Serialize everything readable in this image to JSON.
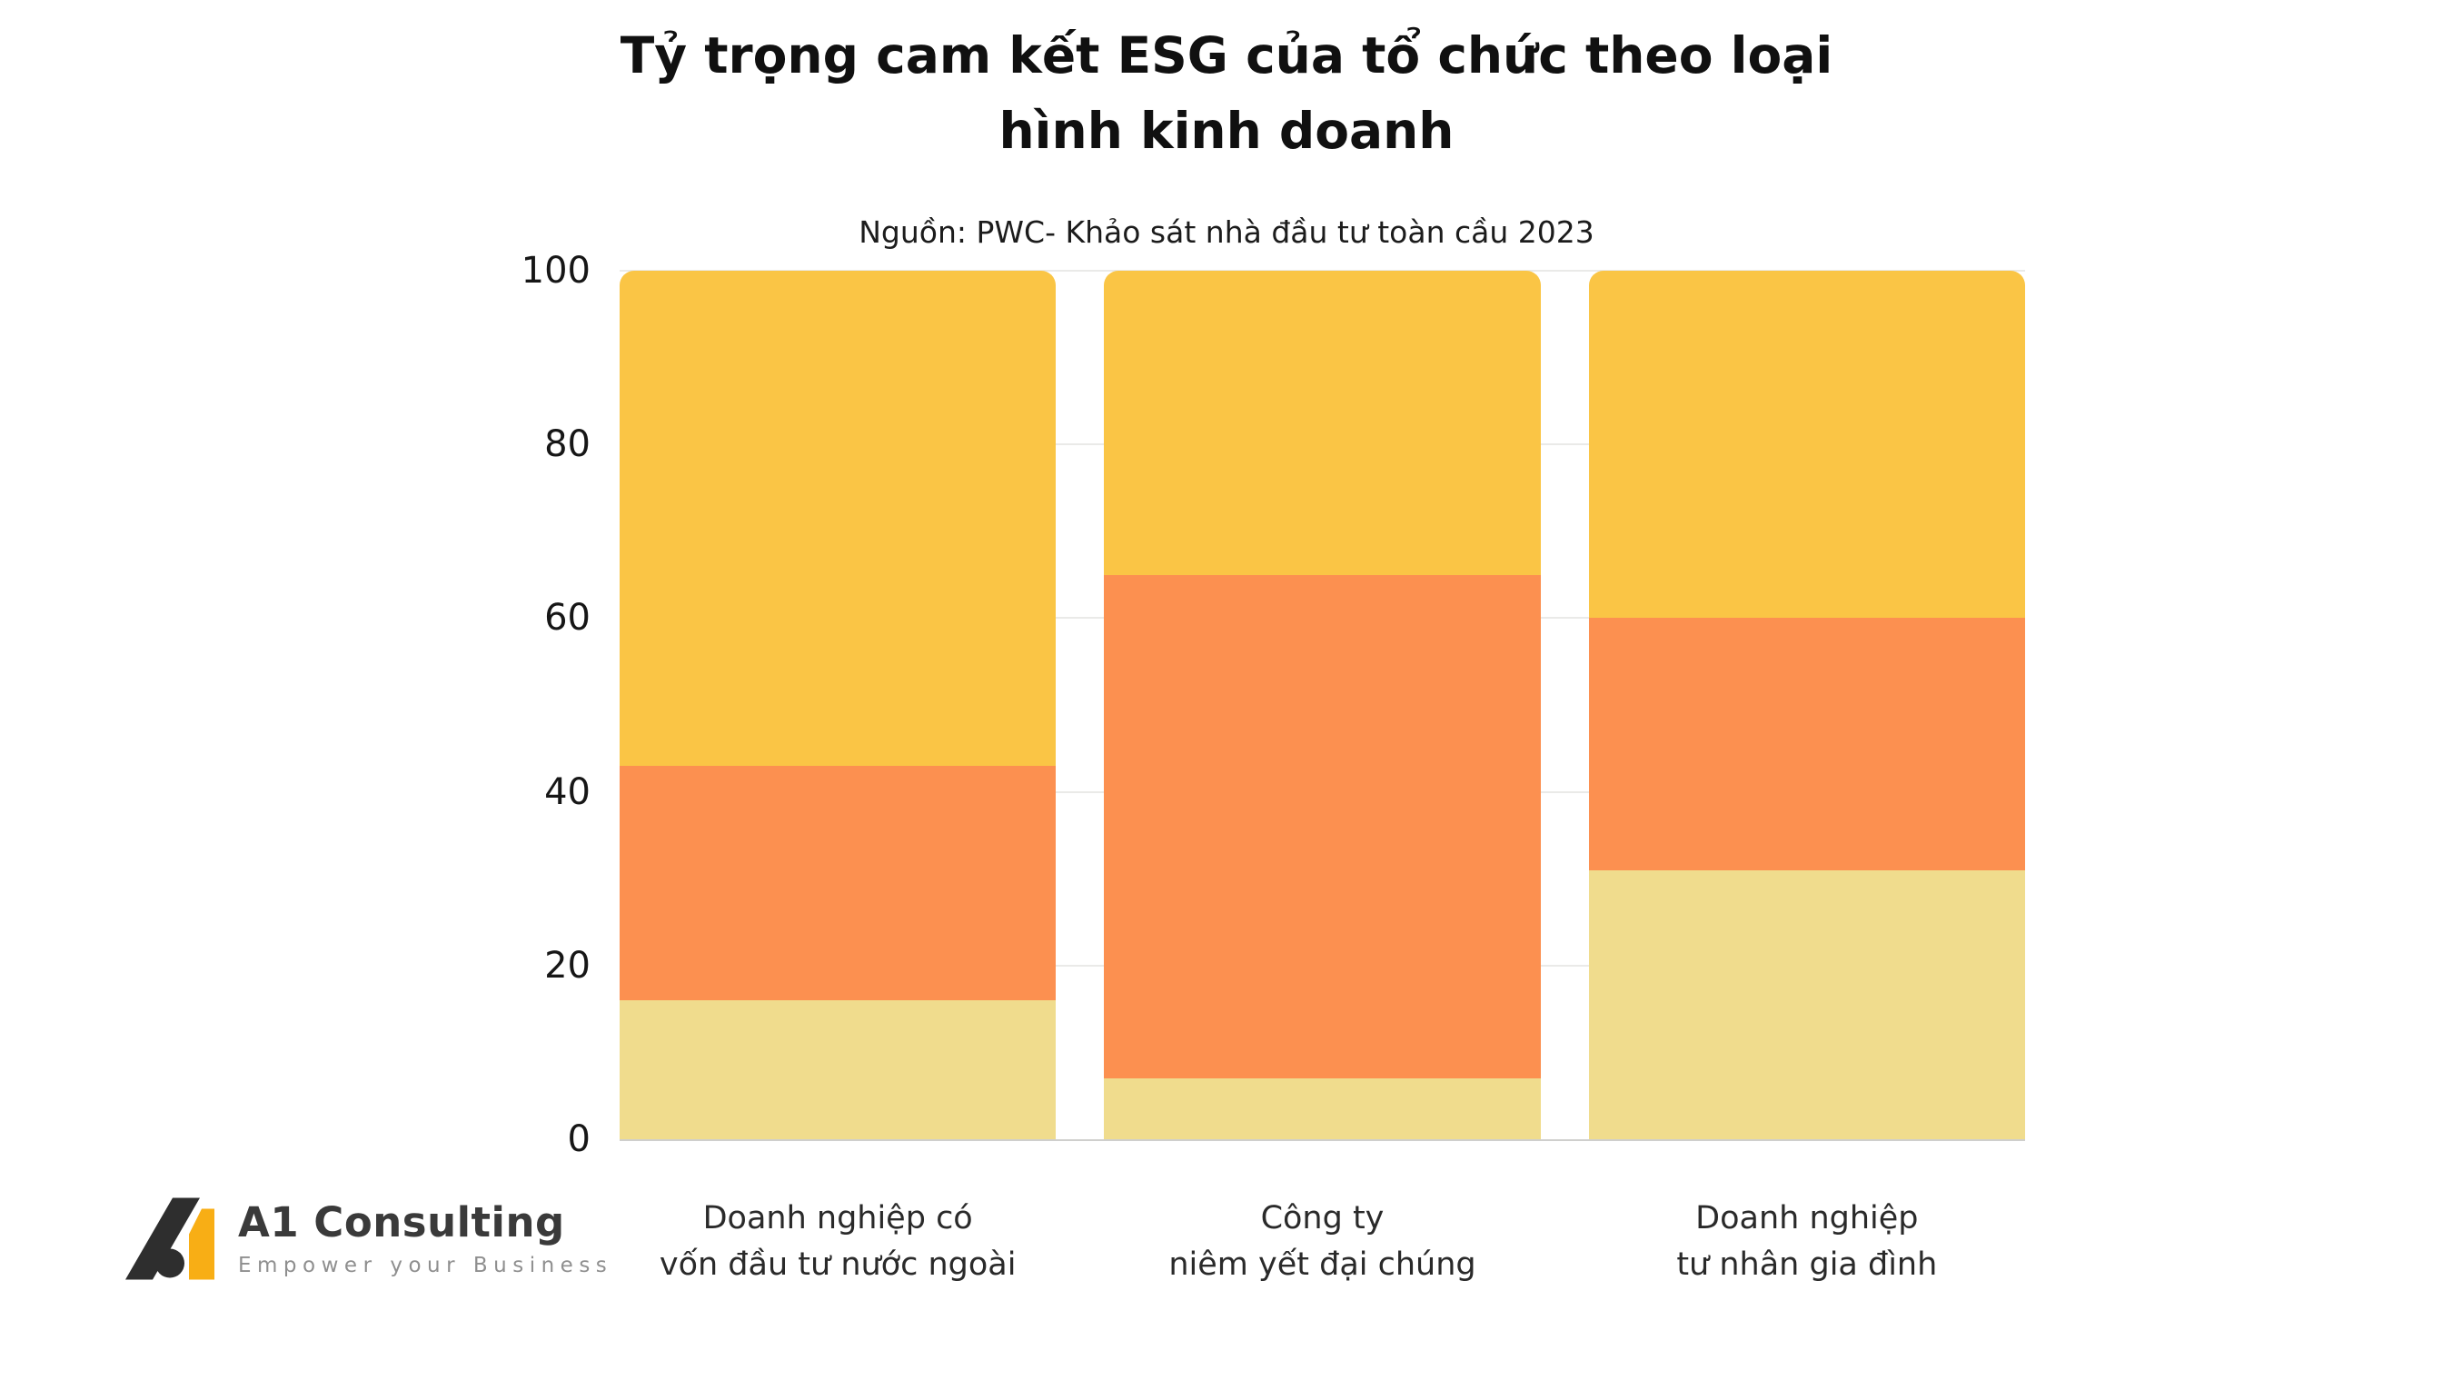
{
  "title": {
    "full": "Tỷ trọng cam kết ESG của tổ chức theo loại hình kinh doanh",
    "line1": "Tỷ trọng cam kết ESG của tổ chức theo loại",
    "line2": "hình kinh doanh"
  },
  "subtitle": "Nguồn: PWC- Khảo sát nhà đầu tư toàn cầu 2023",
  "chart_data": {
    "type": "bar",
    "stacked": true,
    "title": "Tỷ trọng cam kết ESG của tổ chức theo loại hình kinh doanh",
    "subtitle": "Nguồn: PWC- Khảo sát nhà đầu tư toàn cầu 2023",
    "categories": [
      "Doanh nghiệp có vốn đầu tư nước ngoài",
      "Công ty niêm yết đại chúng",
      "Doanh nghiệp tư nhân gia đình"
    ],
    "category_label_lines": [
      [
        "Doanh nghiệp có",
        "vốn đầu tư nước ngoài"
      ],
      [
        "Công ty",
        "niêm yết đại chúng"
      ],
      [
        "Doanh nghiệp",
        "tư nhân gia đình"
      ]
    ],
    "series": [
      {
        "name": "segment-bottom",
        "color": "#F0DC8D",
        "values": [
          16,
          7,
          31
        ]
      },
      {
        "name": "segment-middle",
        "color": "#FC9050",
        "values": [
          27,
          58,
          29
        ]
      },
      {
        "name": "segment-top",
        "color": "#FAC545",
        "values": [
          57,
          35,
          40
        ]
      }
    ],
    "stack_totals": [
      100,
      100,
      100
    ],
    "y_ticks": [
      0,
      20,
      40,
      60,
      80,
      100
    ],
    "ylim": [
      0,
      100
    ],
    "xlabel": "",
    "ylabel": "",
    "grid": true,
    "legend": "none"
  },
  "logo": {
    "name": "A1 Consulting",
    "tagline": "Empower your Business",
    "mark_colors": {
      "dark": "#2E2E2E",
      "yellow": "#F8AE15"
    }
  }
}
